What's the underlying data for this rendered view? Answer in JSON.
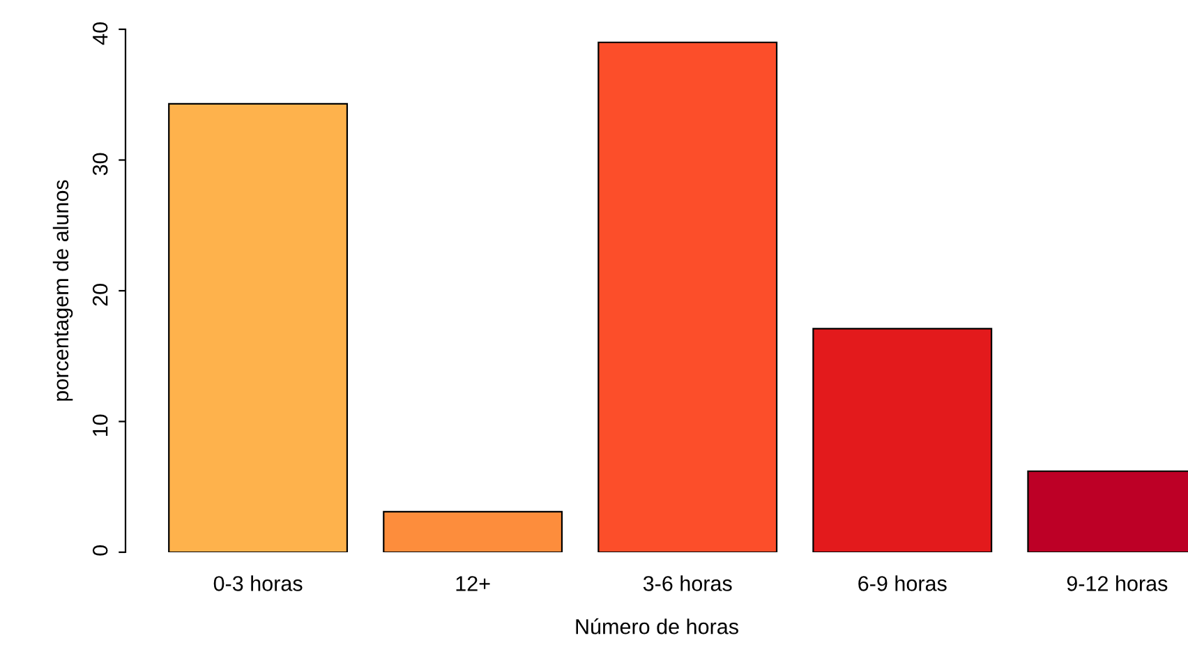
{
  "chart_data": {
    "type": "bar",
    "xlabel": "Número de horas",
    "ylabel": "porcentagem de alunos",
    "categories": [
      "0-3 horas",
      "12+",
      "3-6 horas",
      "6-9 horas",
      "9-12 horas"
    ],
    "values": [
      34.3,
      3.1,
      39.0,
      17.1,
      6.2
    ],
    "colors": [
      "#feb24c",
      "#fd8d3c",
      "#fc4e2a",
      "#e31a1c",
      "#bd0026"
    ],
    "ylim": [
      0,
      40
    ],
    "yticks": [
      0,
      10,
      20,
      30,
      40
    ],
    "grid": false
  }
}
